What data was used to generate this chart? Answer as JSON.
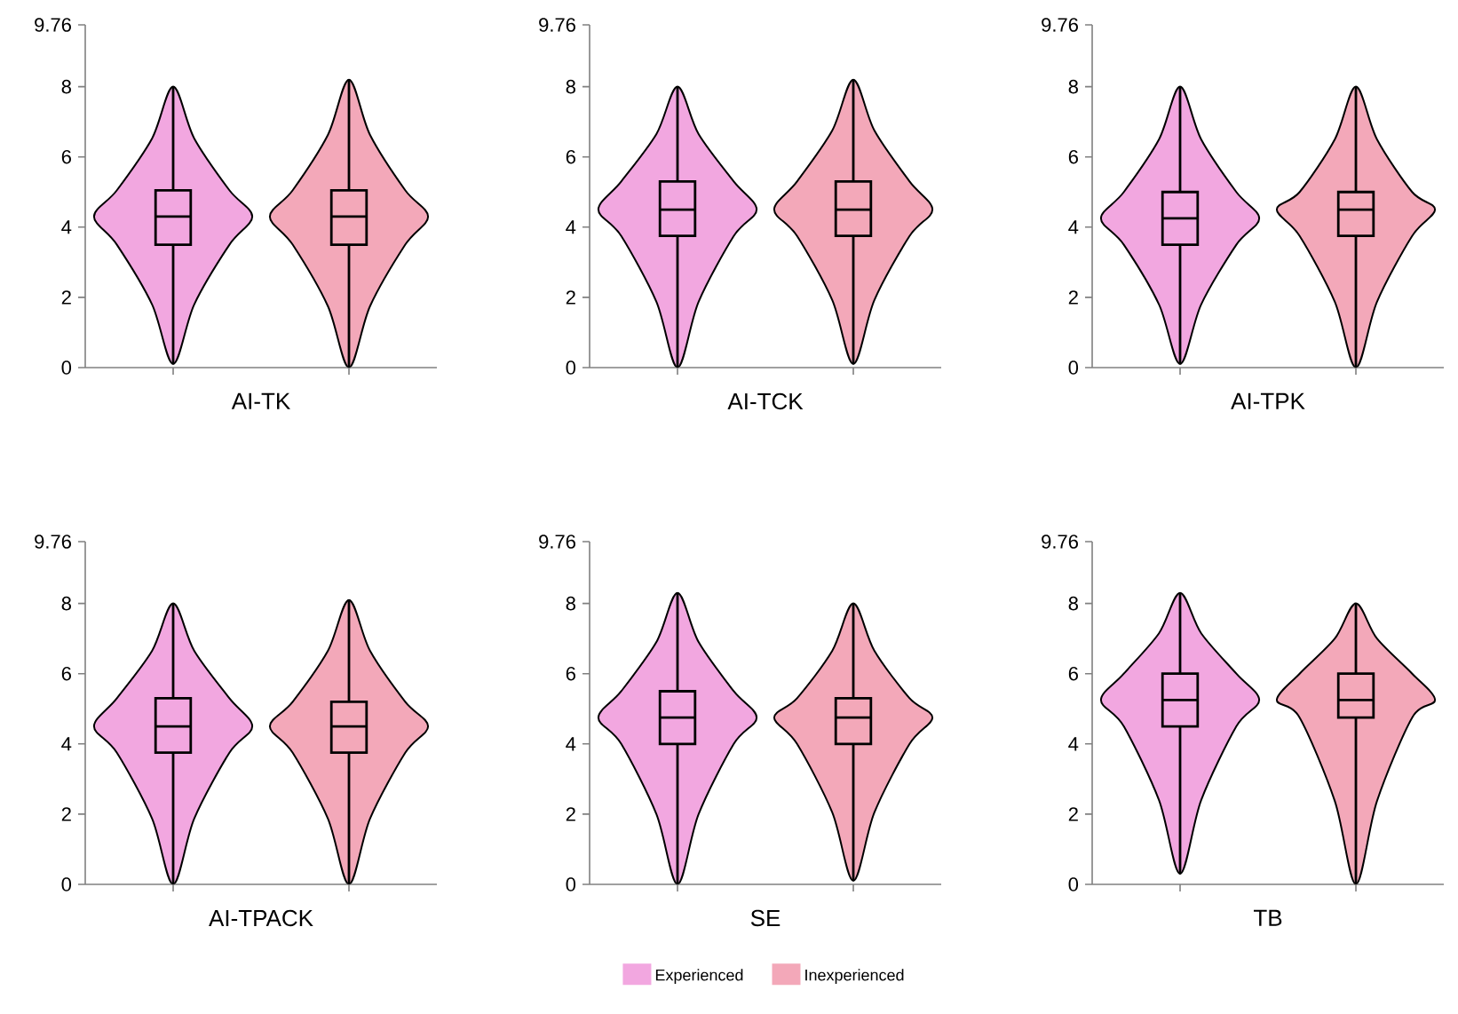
{
  "chart_data": [
    {
      "type": "box",
      "xlabel": "AI-TK",
      "categories": [
        null,
        null
      ],
      "ylim": [
        0,
        9.76
      ],
      "yticks": [
        0,
        2,
        4,
        6,
        8,
        9.76
      ],
      "series": [
        {
          "color": "#f2a7e0",
          "boxes": [
            {
              "low": 0.1,
              "q1": 3.5,
              "median": 4.3,
              "q3": 5.05,
              "high": 8.0
            },
            null
          ]
        },
        {
          "color": "#f3a8b9",
          "boxes": [
            null,
            {
              "low": 0.0,
              "q1": 3.5,
              "median": 4.3,
              "q3": 5.05,
              "high": 8.2
            }
          ]
        }
      ]
    },
    {
      "type": "box",
      "xlabel": "AI-TCK",
      "categories": [
        null,
        null
      ],
      "ylim": [
        0,
        9.76
      ],
      "yticks": [
        0,
        2,
        4,
        6,
        8,
        9.76
      ],
      "series": [
        {
          "color": "#f2a7e0",
          "boxes": [
            {
              "low": 0.0,
              "q1": 3.75,
              "median": 4.5,
              "q3": 5.3,
              "high": 8.0
            },
            null
          ]
        },
        {
          "color": "#f3a8b9",
          "boxes": [
            null,
            {
              "low": 0.1,
              "q1": 3.75,
              "median": 4.5,
              "q3": 5.3,
              "high": 8.2
            }
          ]
        }
      ]
    },
    {
      "type": "box",
      "xlabel": "AI-TPK",
      "categories": [
        null,
        null
      ],
      "ylim": [
        0,
        9.76
      ],
      "yticks": [
        0,
        2,
        4,
        6,
        8,
        9.76
      ],
      "series": [
        {
          "color": "#f2a7e0",
          "boxes": [
            {
              "low": 0.1,
              "q1": 3.5,
              "median": 4.25,
              "q3": 5.0,
              "high": 8.0
            },
            null
          ]
        },
        {
          "color": "#f3a8b9",
          "boxes": [
            null,
            {
              "low": 0.0,
              "q1": 3.75,
              "median": 4.5,
              "q3": 5.0,
              "high": 8.0
            }
          ]
        }
      ]
    },
    {
      "type": "box",
      "xlabel": "AI-TPACK",
      "categories": [
        null,
        null
      ],
      "ylim": [
        0,
        9.76
      ],
      "yticks": [
        0,
        2,
        4,
        6,
        8,
        9.76
      ],
      "series": [
        {
          "color": "#f2a7e0",
          "boxes": [
            {
              "low": 0.0,
              "q1": 3.75,
              "median": 4.5,
              "q3": 5.3,
              "high": 8.0
            },
            null
          ]
        },
        {
          "color": "#f3a8b9",
          "boxes": [
            null,
            {
              "low": 0.0,
              "q1": 3.75,
              "median": 4.5,
              "q3": 5.2,
              "high": 8.1
            }
          ]
        }
      ]
    },
    {
      "type": "box",
      "xlabel": "SE",
      "categories": [
        null,
        null
      ],
      "ylim": [
        0,
        9.76
      ],
      "yticks": [
        0,
        2,
        4,
        6,
        8,
        9.76
      ],
      "legend": "bottom",
      "series": [
        {
          "name": "Experienced",
          "color": "#f2a7e0",
          "boxes": [
            {
              "low": 0.0,
              "q1": 4.0,
              "median": 4.75,
              "q3": 5.5,
              "high": 8.3
            },
            null
          ]
        },
        {
          "name": "Inexperienced",
          "color": "#f3a8b9",
          "boxes": [
            null,
            {
              "low": 0.1,
              "q1": 4.0,
              "median": 4.75,
              "q3": 5.3,
              "high": 8.0
            }
          ]
        }
      ]
    },
    {
      "type": "box",
      "xlabel": "TB",
      "categories": [
        null,
        null
      ],
      "ylim": [
        0,
        9.76
      ],
      "yticks": [
        0,
        2,
        4,
        6,
        8,
        9.76
      ],
      "series": [
        {
          "color": "#f2a7e0",
          "boxes": [
            {
              "low": 0.3,
              "q1": 4.5,
              "median": 5.25,
              "q3": 6.0,
              "high": 8.3
            },
            null
          ]
        },
        {
          "color": "#f3a8b9",
          "boxes": [
            null,
            {
              "low": 0.0,
              "q1": 4.75,
              "median": 5.25,
              "q3": 6.0,
              "high": 8.0
            }
          ]
        }
      ]
    }
  ]
}
